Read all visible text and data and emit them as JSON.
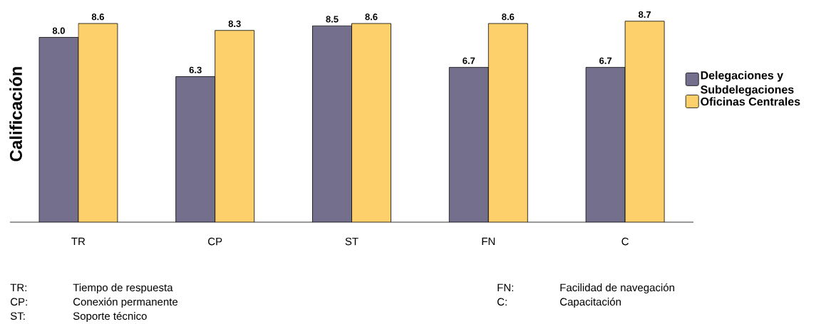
{
  "chart_data": {
    "type": "bar",
    "ylabel": "Calificación",
    "categories": [
      "TR",
      "CP",
      "ST",
      "FN",
      "C"
    ],
    "series": [
      {
        "name": "Delegaciones y Subdelegaciones",
        "color": "#736f8c",
        "values": [
          8.0,
          6.3,
          8.5,
          6.7,
          6.7
        ],
        "value_labels": [
          "8.0",
          "6.3",
          "8.5",
          "6.7",
          "6.7"
        ]
      },
      {
        "name": "Oficinas Centrales",
        "color": "#fdd06b",
        "values": [
          8.6,
          8.3,
          8.6,
          8.6,
          8.7
        ],
        "value_labels": [
          "8.6",
          "8.3",
          "8.6",
          "8.6",
          "8.7"
        ]
      }
    ],
    "legend": "right",
    "annotations": [
      "TR:",
      "Tiempo de respuesta",
      "CP:",
      "Conexión permanente",
      "ST:",
      "Soporte técnico",
      "FN:",
      "Facilidad de navegación",
      "C:",
      "Capacitación"
    ]
  }
}
